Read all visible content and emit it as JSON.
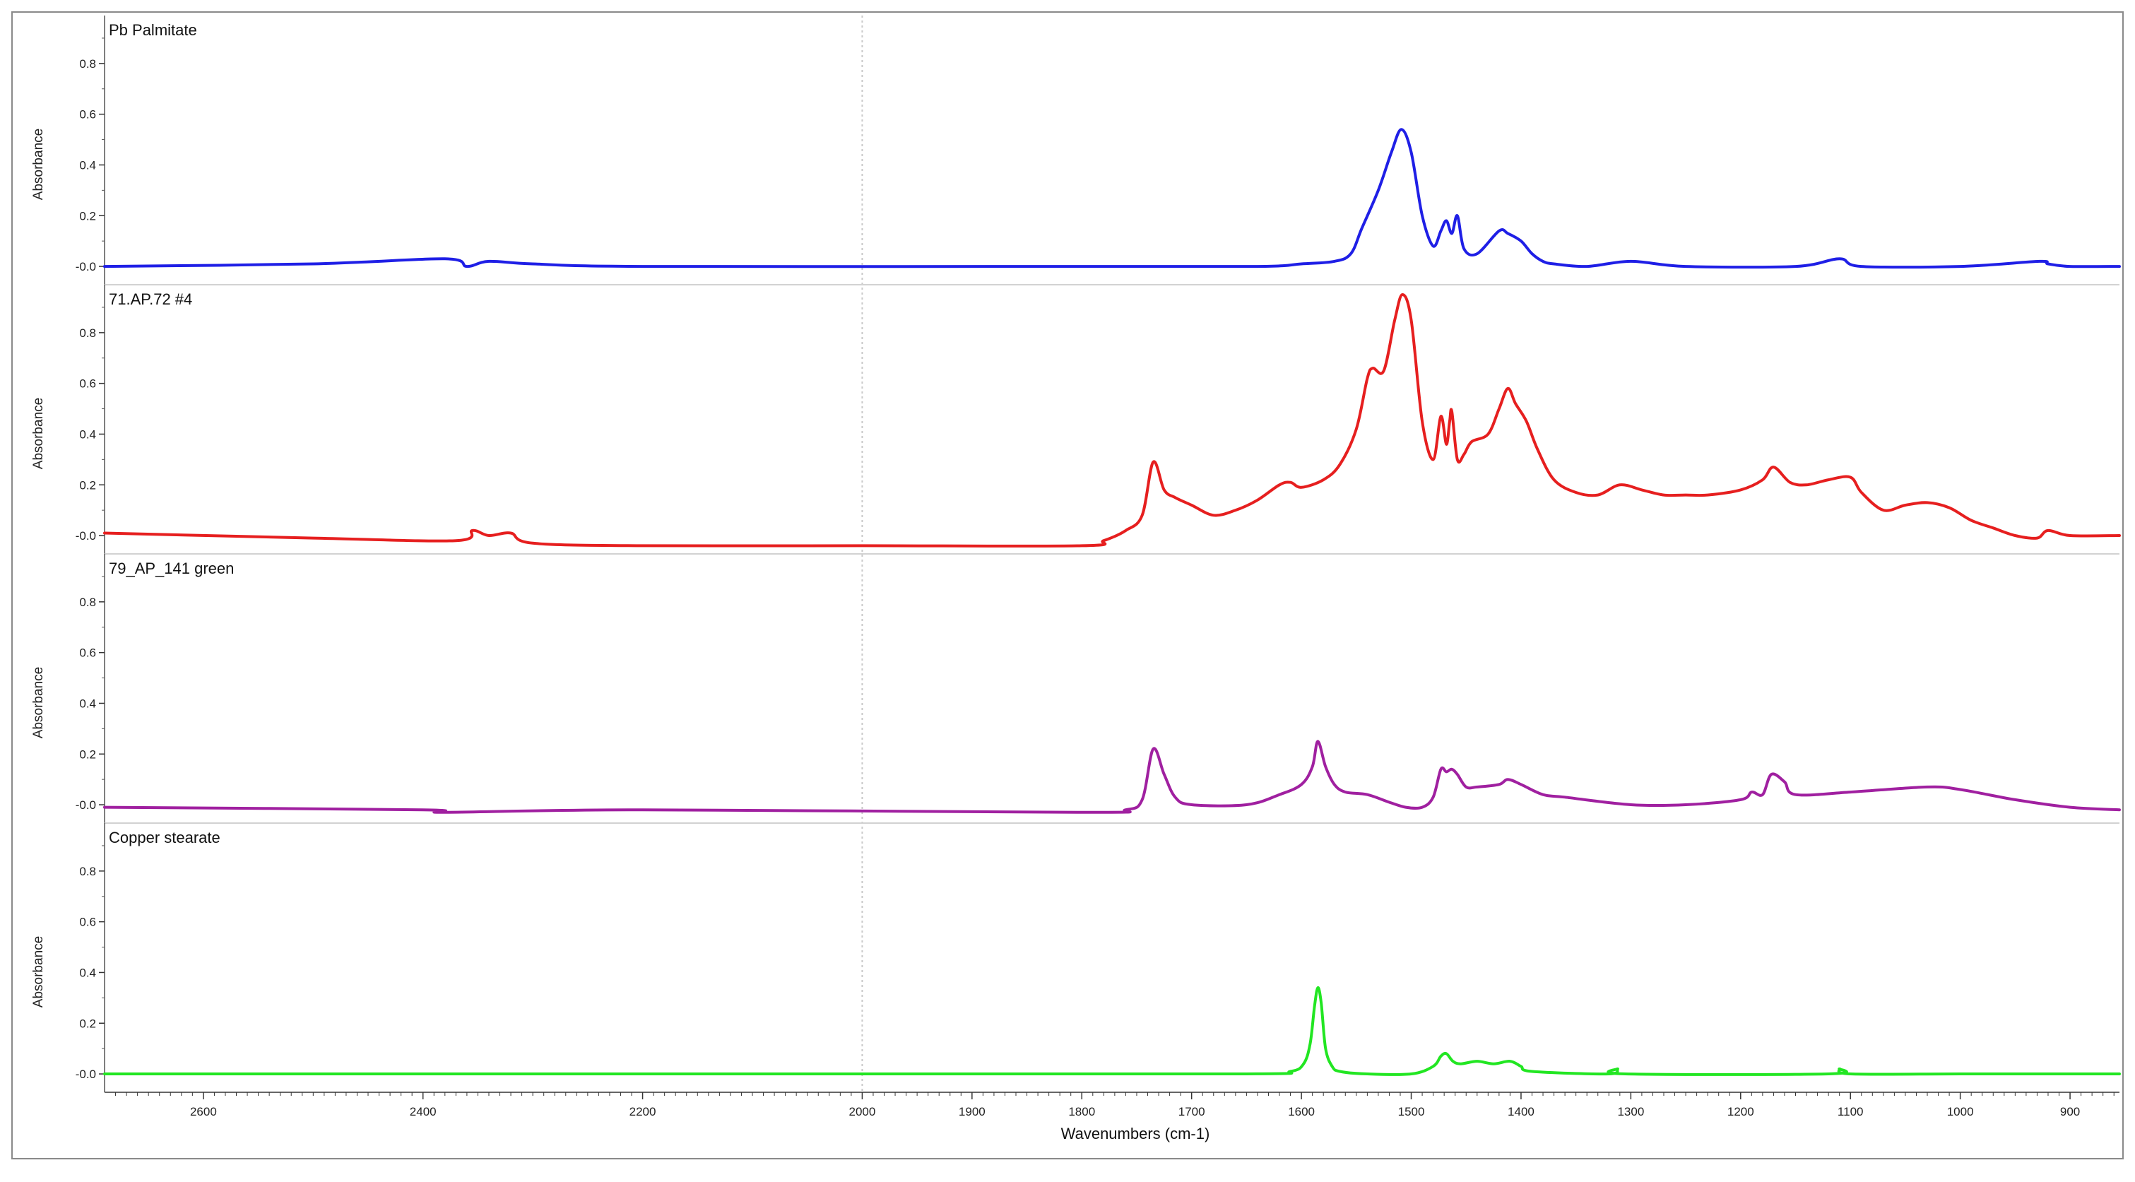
{
  "chart_data": {
    "type": "line",
    "xlabel": "Wavenumbers (cm-1)",
    "x_reversed": true,
    "xlim": [
      2690,
      855
    ],
    "x_ticks": [
      2600,
      2400,
      2200,
      2000,
      1900,
      1800,
      1700,
      1600,
      1500,
      1400,
      1300,
      1200,
      1100,
      1000,
      900
    ],
    "x_tick_labels": [
      "2600",
      "2400",
      "2200",
      "2000",
      "1900",
      "1800",
      "1700",
      "1600",
      "1500",
      "1400",
      "1300",
      "1200",
      "1100",
      "1000",
      "900"
    ],
    "x_gridline": 2000,
    "panels": [
      {
        "title": "Pb Palmitate",
        "ylabel": "Absorbance",
        "color": "#1f1fe6",
        "ylim": [
          -0.05,
          0.95
        ],
        "y_ticks": [
          0.0,
          0.2,
          0.4,
          0.6,
          0.8
        ],
        "y_tick_labels": [
          "-0.0",
          "0.2",
          "0.4",
          "0.6",
          "0.8"
        ],
        "x": [
          2690,
          2500,
          2380,
          2360,
          2340,
          2300,
          2200,
          1800,
          1640,
          1600,
          1570,
          1555,
          1545,
          1530,
          1518,
          1509,
          1500,
          1490,
          1480,
          1473,
          1468,
          1463,
          1458,
          1452,
          1440,
          1420,
          1412,
          1400,
          1390,
          1380,
          1370,
          1340,
          1300,
          1250,
          1150,
          1110,
          1090,
          1000,
          928,
          920,
          900,
          855
        ],
        "y": [
          0.0,
          0.01,
          0.03,
          0.0,
          0.02,
          0.01,
          0.0,
          0.0,
          0.0,
          0.01,
          0.02,
          0.05,
          0.15,
          0.3,
          0.45,
          0.54,
          0.45,
          0.2,
          0.08,
          0.14,
          0.18,
          0.13,
          0.2,
          0.07,
          0.05,
          0.14,
          0.13,
          0.1,
          0.05,
          0.02,
          0.01,
          0.0,
          0.02,
          0.0,
          0.0,
          0.03,
          0.0,
          0.0,
          0.02,
          0.01,
          0.0,
          0.0
        ]
      },
      {
        "title": "71.AP.72  #4",
        "ylabel": "Absorbance",
        "color": "#e61f1f",
        "ylim": [
          -0.05,
          0.95
        ],
        "y_ticks": [
          0.0,
          0.2,
          0.4,
          0.6,
          0.8
        ],
        "y_tick_labels": [
          "-0.0",
          "0.2",
          "0.4",
          "0.6",
          "0.8"
        ],
        "x": [
          2690,
          2500,
          2370,
          2355,
          2340,
          2320,
          2300,
          2200,
          2000,
          1800,
          1780,
          1760,
          1745,
          1735,
          1725,
          1715,
          1700,
          1680,
          1660,
          1640,
          1620,
          1610,
          1600,
          1580,
          1565,
          1550,
          1540,
          1535,
          1525,
          1515,
          1508,
          1500,
          1490,
          1480,
          1473,
          1468,
          1465,
          1463,
          1458,
          1452,
          1445,
          1430,
          1420,
          1412,
          1405,
          1395,
          1385,
          1370,
          1350,
          1330,
          1310,
          1290,
          1270,
          1250,
          1230,
          1200,
          1180,
          1170,
          1155,
          1140,
          1120,
          1100,
          1090,
          1070,
          1050,
          1030,
          1010,
          990,
          970,
          950,
          930,
          920,
          900,
          855
        ],
        "y": [
          0.01,
          -0.01,
          -0.02,
          0.02,
          0.0,
          0.01,
          -0.03,
          -0.04,
          -0.04,
          -0.04,
          -0.02,
          0.02,
          0.08,
          0.29,
          0.18,
          0.15,
          0.12,
          0.08,
          0.1,
          0.14,
          0.2,
          0.21,
          0.19,
          0.22,
          0.28,
          0.42,
          0.62,
          0.66,
          0.65,
          0.85,
          0.95,
          0.85,
          0.45,
          0.3,
          0.47,
          0.36,
          0.45,
          0.49,
          0.3,
          0.32,
          0.37,
          0.4,
          0.5,
          0.58,
          0.52,
          0.45,
          0.34,
          0.22,
          0.17,
          0.16,
          0.2,
          0.18,
          0.16,
          0.16,
          0.16,
          0.18,
          0.22,
          0.27,
          0.21,
          0.2,
          0.22,
          0.23,
          0.17,
          0.1,
          0.12,
          0.13,
          0.11,
          0.06,
          0.03,
          0.0,
          -0.01,
          0.02,
          0.0,
          0.0
        ]
      },
      {
        "title": "79_AP_141  green",
        "ylabel": "Absorbance",
        "color": "#a020a0",
        "ylim": [
          -0.05,
          0.95
        ],
        "y_ticks": [
          0.0,
          0.2,
          0.4,
          0.6,
          0.8
        ],
        "y_tick_labels": [
          "-0.0",
          "0.2",
          "0.4",
          "0.6",
          "0.8"
        ],
        "x": [
          2690,
          2400,
          2380,
          2200,
          1800,
          1760,
          1745,
          1735,
          1725,
          1715,
          1700,
          1650,
          1620,
          1600,
          1590,
          1585,
          1578,
          1570,
          1560,
          1540,
          1520,
          1505,
          1490,
          1480,
          1473,
          1468,
          1463,
          1458,
          1450,
          1440,
          1420,
          1412,
          1400,
          1380,
          1360,
          1300,
          1250,
          1200,
          1190,
          1180,
          1172,
          1160,
          1150,
          1100,
          1030,
          1000,
          950,
          900,
          855
        ],
        "y": [
          -0.01,
          -0.02,
          -0.03,
          -0.02,
          -0.03,
          -0.02,
          0.02,
          0.22,
          0.12,
          0.03,
          0.0,
          0.0,
          0.04,
          0.08,
          0.15,
          0.25,
          0.15,
          0.08,
          0.05,
          0.04,
          0.01,
          -0.01,
          -0.01,
          0.03,
          0.14,
          0.13,
          0.14,
          0.12,
          0.07,
          0.07,
          0.08,
          0.1,
          0.08,
          0.04,
          0.03,
          0.0,
          0.0,
          0.02,
          0.05,
          0.04,
          0.12,
          0.09,
          0.04,
          0.05,
          0.07,
          0.06,
          0.02,
          -0.01,
          -0.02
        ]
      },
      {
        "title": "Copper stearate",
        "ylabel": "Absorbance",
        "color": "#22e622",
        "ylim": [
          -0.05,
          0.95
        ],
        "y_ticks": [
          0.0,
          0.2,
          0.4,
          0.6,
          0.8
        ],
        "y_tick_labels": [
          "-0.0",
          "0.2",
          "0.4",
          "0.6",
          "0.8"
        ],
        "x": [
          2690,
          2000,
          1650,
          1610,
          1598,
          1592,
          1588,
          1585,
          1582,
          1578,
          1572,
          1565,
          1540,
          1500,
          1480,
          1473,
          1468,
          1462,
          1455,
          1440,
          1425,
          1410,
          1400,
          1390,
          1320,
          1312,
          1305,
          1120,
          1110,
          1100,
          1000,
          900,
          855
        ],
        "y": [
          0.0,
          0.0,
          0.0,
          0.01,
          0.04,
          0.12,
          0.27,
          0.34,
          0.28,
          0.1,
          0.03,
          0.01,
          0.0,
          0.0,
          0.03,
          0.07,
          0.08,
          0.05,
          0.04,
          0.05,
          0.04,
          0.05,
          0.03,
          0.01,
          0.0,
          0.02,
          0.0,
          0.0,
          0.02,
          0.0,
          0.0,
          0.0,
          0.0
        ]
      }
    ]
  }
}
